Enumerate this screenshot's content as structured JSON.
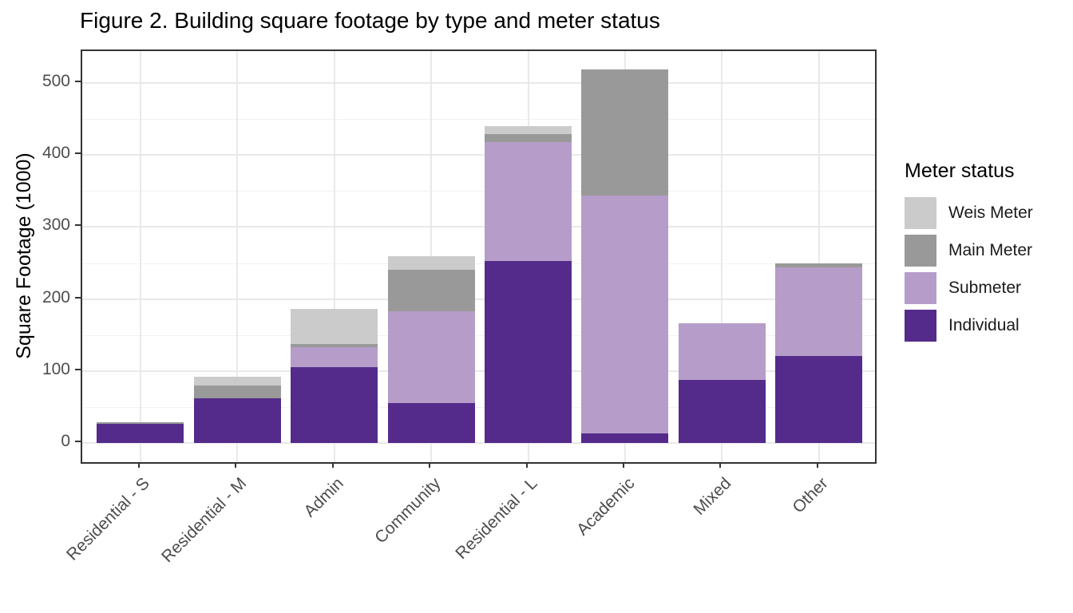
{
  "chart_data": {
    "type": "bar",
    "stacked": true,
    "title": "Figure 2. Building square footage by type and meter status",
    "xlabel": "",
    "ylabel": "Square Footage (1000)",
    "categories": [
      "Residential - S",
      "Residential - M",
      "Admin",
      "Community",
      "Residential - L",
      "Academic",
      "Mixed",
      "Other"
    ],
    "series": [
      {
        "name": "Individual",
        "color": "#542b8b",
        "values": [
          27,
          62,
          106,
          56,
          253,
          14,
          88,
          121
        ]
      },
      {
        "name": "Submeter",
        "color": "#b69dc9",
        "values": [
          0,
          0,
          27,
          127,
          165,
          330,
          78,
          123
        ]
      },
      {
        "name": "Main Meter",
        "color": "#999999",
        "values": [
          2,
          18,
          5,
          58,
          11,
          174,
          0,
          6
        ]
      },
      {
        "name": "Weis Meter",
        "color": "#cbcbcb",
        "values": [
          0,
          12,
          48,
          18,
          11,
          0,
          0,
          0
        ]
      }
    ],
    "totals": [
      29,
      92,
      186,
      259,
      440,
      518,
      166,
      250
    ],
    "y_ticks": [
      0,
      100,
      200,
      300,
      400,
      500
    ],
    "y_minor_ticks": [
      50,
      150,
      250,
      350,
      450
    ],
    "ylim": [
      0,
      544
    ],
    "x_tick_angle": 45,
    "grid": {
      "major": true,
      "minor": true,
      "vertical": true
    },
    "panel_border": true,
    "legend": {
      "title": "Meter status",
      "position": "right",
      "order": [
        "Weis Meter",
        "Main Meter",
        "Submeter",
        "Individual"
      ]
    }
  }
}
